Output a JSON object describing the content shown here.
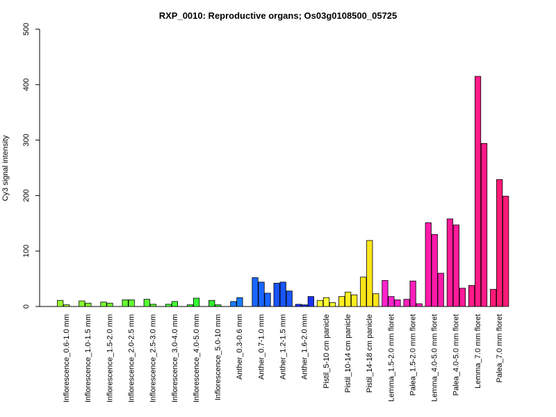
{
  "chart_data": {
    "type": "bar",
    "title": "RXP_0010: Reproductive organs; Os03g0108500_05725",
    "xlabel": "",
    "ylabel": "Cy3 signal intensity",
    "ylim": [
      0,
      500
    ],
    "yticks": [
      0,
      100,
      200,
      300,
      400,
      500
    ],
    "grid": false,
    "legend": "none",
    "groups": [
      {
        "label": "Inflorescence_0.6-1.0 mm",
        "color": "#99ff33",
        "values": [
          11,
          3
        ]
      },
      {
        "label": "Inflorescence_1.0-1.5 mm",
        "color": "#88ff33",
        "values": [
          10,
          6
        ]
      },
      {
        "label": "Inflorescence_1.5-2.0 mm",
        "color": "#77ff33",
        "values": [
          8,
          6
        ]
      },
      {
        "label": "Inflorescence_2.0-2.5 mm",
        "color": "#66ff33",
        "values": [
          12,
          12
        ]
      },
      {
        "label": "Inflorescence_2.5-3.0 mm",
        "color": "#55ff33",
        "values": [
          13,
          4
        ]
      },
      {
        "label": "Inflorescence_3.0-4.0 mm",
        "color": "#44ff33",
        "values": [
          4,
          9
        ]
      },
      {
        "label": "Inflorescence_4.0-5.0 mm",
        "color": "#33ff33",
        "values": [
          3,
          15
        ]
      },
      {
        "label": "Inflorescence_5.0-10 mm",
        "color": "#33ee33",
        "values": [
          11,
          3
        ]
      },
      {
        "label": "Anther_0.3-0.6 mm",
        "color": "#1a7cff",
        "values": [
          9,
          16
        ]
      },
      {
        "label": "Anther_0.7-1.0 mm",
        "color": "#1a66ff",
        "values": [
          52,
          44,
          24
        ]
      },
      {
        "label": "Anther_1.2-1.5 mm",
        "color": "#1a55ff",
        "values": [
          42,
          44,
          28
        ]
      },
      {
        "label": "Anther_1.6-2.0 mm",
        "color": "#1a33ff",
        "values": [
          4,
          3,
          18
        ]
      },
      {
        "label": "Pistil_5-10 cm panicle",
        "color": "#ffff33",
        "values": [
          11,
          16,
          7
        ]
      },
      {
        "label": "Pistil_10-14 cm panicle",
        "color": "#ffee22",
        "values": [
          18,
          26,
          21
        ]
      },
      {
        "label": "Pistil_14-18 cm panicle",
        "color": "#ffe61a",
        "values": [
          53,
          119,
          23
        ]
      },
      {
        "label": "Lemma_1.5-2.0 mm floret",
        "color": "#ff22cc",
        "values": [
          47,
          18,
          12
        ]
      },
      {
        "label": "Palea_1.5-2.0 mm floret",
        "color": "#ff1fbb",
        "values": [
          13,
          46,
          5
        ]
      },
      {
        "label": "Lemma_4.0-5.0 mm floret",
        "color": "#ff1aaa",
        "values": [
          151,
          130,
          60
        ]
      },
      {
        "label": "Palea_4.0-5.0 mm floret",
        "color": "#ff1a99",
        "values": [
          158,
          147,
          33
        ]
      },
      {
        "label": "Lemma_7.0 mm floret",
        "color": "#ff1a88",
        "values": [
          38,
          415,
          294
        ]
      },
      {
        "label": "Palea_7.0 mm floret",
        "color": "#ff1a77",
        "values": [
          31,
          229,
          199
        ]
      }
    ]
  }
}
